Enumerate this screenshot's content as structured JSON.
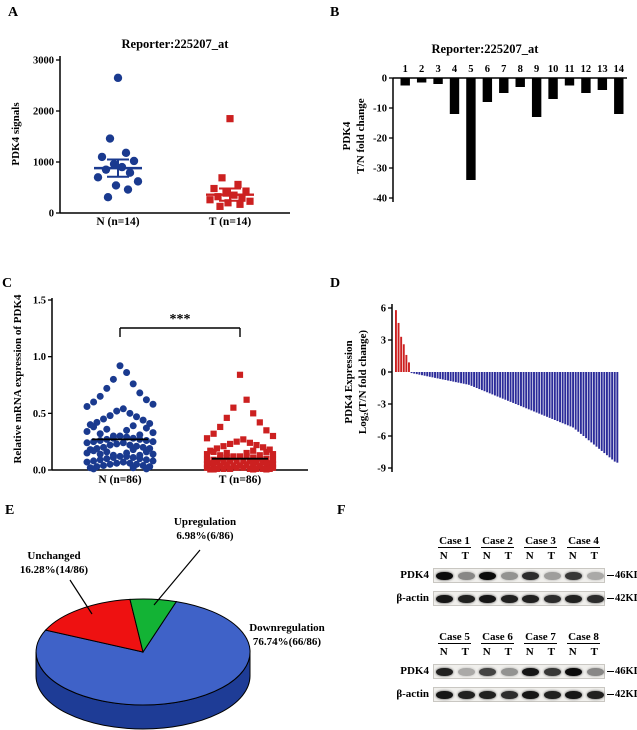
{
  "panel_letters": {
    "a": "A",
    "b": "B",
    "c": "C",
    "d": "D",
    "e": "E",
    "f": "F"
  },
  "chart_data": [
    {
      "id": "A",
      "type": "scatter",
      "title": "Reporter:225207_at",
      "ylabel": "PDK4 signals",
      "ylim": [
        0,
        3000
      ],
      "yticks": [
        0,
        1000,
        2000,
        3000
      ],
      "ytick_labels": [
        "0",
        "1000",
        "2000",
        "3000"
      ],
      "groups": [
        {
          "name": "N (n=14)",
          "color": "#1a3a8f",
          "marker": "circle",
          "mean": 880,
          "sem": 170,
          "values": [
            2650,
            1460,
            1180,
            1100,
            1020,
            960,
            900,
            850,
            790,
            700,
            620,
            540,
            460,
            310
          ]
        },
        {
          "name": "T (n=14)",
          "color": "#cc2020",
          "marker": "square",
          "mean": 360,
          "sem": 120,
          "values": [
            1850,
            690,
            560,
            480,
            430,
            390,
            350,
            320,
            290,
            260,
            230,
            200,
            170,
            130
          ]
        }
      ]
    },
    {
      "id": "B",
      "type": "bar",
      "title": "Reporter:225207_at",
      "ylabel1": "PDK4",
      "ylabel2": "T/N fold change",
      "ylim": [
        -40,
        0
      ],
      "yticks": [
        0,
        -10,
        -20,
        -30,
        -40
      ],
      "categories": [
        "1",
        "2",
        "3",
        "4",
        "5",
        "6",
        "7",
        "8",
        "9",
        "10",
        "11",
        "12",
        "13",
        "14"
      ],
      "values": [
        -2.5,
        -1.5,
        -2,
        -12,
        -34,
        -8,
        -5,
        -3,
        -13,
        -7,
        -2.5,
        -5,
        -4,
        -12
      ],
      "bar_color": "#000000"
    },
    {
      "id": "C",
      "type": "scatter",
      "title": "",
      "ylabel": "Relative mRNA expression of PDK4",
      "ylim": [
        0,
        1.5
      ],
      "yticks": [
        0,
        0.5,
        1,
        1.5
      ],
      "ytick_labels": [
        "0.0",
        "0.5",
        "1.0",
        "1.5"
      ],
      "significance": "***",
      "groups": [
        {
          "name": "N (n=86)",
          "color": "#1a3a8f",
          "marker": "circle",
          "mean": 0.27,
          "values": [
            0.92,
            0.86,
            0.8,
            0.76,
            0.72,
            0.68,
            0.65,
            0.62,
            0.6,
            0.58,
            0.56,
            0.54,
            0.52,
            0.5,
            0.48,
            0.47,
            0.45,
            0.44,
            0.42,
            0.41,
            0.4,
            0.39,
            0.38,
            0.37,
            0.36,
            0.35,
            0.34,
            0.33,
            0.32,
            0.31,
            0.3,
            0.3,
            0.29,
            0.28,
            0.28,
            0.27,
            0.27,
            0.26,
            0.26,
            0.25,
            0.25,
            0.24,
            0.24,
            0.23,
            0.22,
            0.22,
            0.21,
            0.2,
            0.2,
            0.19,
            0.19,
            0.18,
            0.18,
            0.17,
            0.16,
            0.16,
            0.15,
            0.15,
            0.14,
            0.14,
            0.13,
            0.13,
            0.12,
            0.12,
            0.11,
            0.11,
            0.1,
            0.1,
            0.09,
            0.09,
            0.08,
            0.08,
            0.07,
            0.07,
            0.06,
            0.06,
            0.05,
            0.05,
            0.04,
            0.04,
            0.03,
            0.03,
            0.02,
            0.02,
            0.01,
            0.01
          ]
        },
        {
          "name": "T (n=86)",
          "color": "#cc2020",
          "marker": "square",
          "mean": 0.1,
          "values": [
            0.84,
            0.62,
            0.55,
            0.5,
            0.46,
            0.42,
            0.38,
            0.35,
            0.32,
            0.3,
            0.28,
            0.27,
            0.25,
            0.24,
            0.23,
            0.22,
            0.21,
            0.2,
            0.19,
            0.18,
            0.17,
            0.17,
            0.16,
            0.16,
            0.15,
            0.15,
            0.14,
            0.14,
            0.13,
            0.13,
            0.12,
            0.12,
            0.12,
            0.11,
            0.11,
            0.11,
            0.1,
            0.1,
            0.1,
            0.09,
            0.09,
            0.09,
            0.08,
            0.08,
            0.08,
            0.08,
            0.07,
            0.07,
            0.07,
            0.07,
            0.06,
            0.06,
            0.06,
            0.06,
            0.05,
            0.05,
            0.05,
            0.05,
            0.05,
            0.04,
            0.04,
            0.04,
            0.04,
            0.04,
            0.03,
            0.03,
            0.03,
            0.03,
            0.03,
            0.02,
            0.02,
            0.02,
            0.02,
            0.02,
            0.02,
            0.01,
            0.01,
            0.01,
            0.01,
            0.01,
            0.01,
            0.01,
            0.005,
            0.005,
            0.005,
            0.005
          ]
        }
      ]
    },
    {
      "id": "D",
      "type": "waterfall",
      "ylabel1": "PDK4 Expression",
      "ylabel2": "Log₂(T/N fold change)",
      "ylim": [
        -9,
        6
      ],
      "yticks": [
        6,
        3,
        0,
        -3,
        -6,
        -9
      ],
      "up_color": "#cc2020",
      "down_color": "#2b2b99",
      "values": [
        5.8,
        4.6,
        3.3,
        2.6,
        1.6,
        0.9,
        -0.1,
        -0.15,
        -0.2,
        -0.25,
        -0.3,
        -0.35,
        -0.4,
        -0.45,
        -0.5,
        -0.55,
        -0.6,
        -0.65,
        -0.7,
        -0.75,
        -0.8,
        -0.85,
        -0.9,
        -0.95,
        -1.0,
        -1.05,
        -1.1,
        -1.15,
        -1.2,
        -1.3,
        -1.4,
        -1.5,
        -1.6,
        -1.7,
        -1.8,
        -1.9,
        -2.0,
        -2.1,
        -2.2,
        -2.3,
        -2.4,
        -2.5,
        -2.6,
        -2.7,
        -2.8,
        -2.9,
        -3.0,
        -3.1,
        -3.2,
        -3.3,
        -3.4,
        -3.5,
        -3.6,
        -3.7,
        -3.8,
        -3.9,
        -4.0,
        -4.1,
        -4.2,
        -4.3,
        -4.4,
        -4.5,
        -4.6,
        -4.7,
        -4.8,
        -4.9,
        -5.0,
        -5.1,
        -5.2,
        -5.4,
        -5.6,
        -5.8,
        -6.0,
        -6.2,
        -6.4,
        -6.6,
        -6.8,
        -7.0,
        -7.2,
        -7.4,
        -7.6,
        -7.8,
        -8.0,
        -8.2,
        -8.4,
        -8.5
      ]
    },
    {
      "id": "E",
      "type": "pie",
      "slices": [
        {
          "label": "Upregulation",
          "pct_label": "6.98%(6/86)",
          "fraction": 0.0698,
          "color": "#13b335"
        },
        {
          "label": "Unchanged",
          "pct_label": "16.28%(14/86)",
          "fraction": 0.1628,
          "color": "#ee1111"
        },
        {
          "label": "Downregulation",
          "pct_label": "76.74%(66/86)",
          "fraction": 0.7674,
          "color": "#3f62c8"
        }
      ],
      "side_color": "#1e3c96"
    }
  ],
  "western": {
    "row_labels": [
      "PDK4",
      "β-actin"
    ],
    "sizes": [
      "46KD",
      "42KD"
    ],
    "lane_labels": [
      "N",
      "T"
    ],
    "groups": [
      {
        "cases": [
          "Case 1",
          "Case 2",
          "Case 3",
          "Case 4"
        ],
        "pdk4": [
          1,
          0.45,
          1,
          0.4,
          0.85,
          0.35,
          0.8,
          0.3
        ],
        "actin": [
          0.95,
          0.9,
          0.95,
          0.9,
          0.9,
          0.85,
          0.9,
          0.85
        ]
      },
      {
        "cases": [
          "Case 5",
          "Case 6",
          "Case 7",
          "Case 8"
        ],
        "pdk4": [
          0.9,
          0.3,
          0.75,
          0.4,
          0.95,
          0.8,
          1,
          0.45
        ],
        "actin": [
          0.95,
          0.9,
          0.9,
          0.85,
          0.95,
          0.9,
          0.95,
          0.9
        ]
      }
    ]
  }
}
